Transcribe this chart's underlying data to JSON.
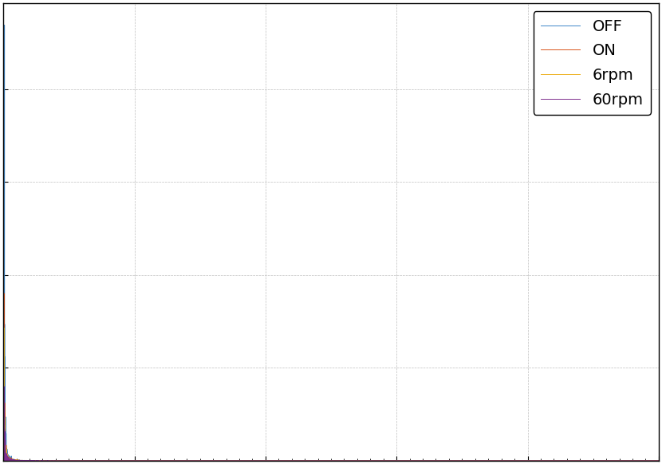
{
  "title": "",
  "xlabel": "",
  "ylabel": "",
  "line_colors": [
    "#3e86c8",
    "#d95319",
    "#edb120",
    "#7e2f8e"
  ],
  "line_labels": [
    "OFF",
    "ON",
    "6rpm",
    "60rpm"
  ],
  "line_width": 0.7,
  "background_color": "#ffffff",
  "grid_color": "#b8b8b8",
  "grid_style": "--",
  "xlim": [
    0,
    500
  ],
  "legend_loc": "upper right",
  "legend_fontsize": 14
}
